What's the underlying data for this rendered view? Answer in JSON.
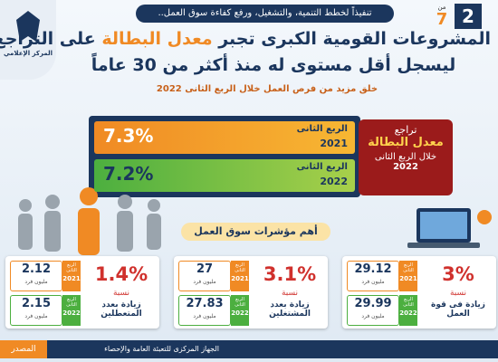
{
  "header": {
    "page": "2",
    "of": "من",
    "total": "7",
    "tagline": "تنفيذاً لخطط التنمية، والتشغيل، ورفع كفاءة سوق العمل..",
    "logo": "المركز الإعلامي",
    "title_parts": [
      "المشروعات القومية الكبرى تجبر",
      "معدل البطالة",
      "على التراجع"
    ],
    "title_line2": "ليسجل أقل مستوى له منذ أكثر من 30 عاماً",
    "subtitle": "خلق مزيد من فرص العمل خلال الربع الثانى 2022"
  },
  "unemployment": {
    "bars": [
      {
        "quarter": "الربع الثانى",
        "year": "2021",
        "value": "7.3%"
      },
      {
        "quarter": "الربع الثانى",
        "year": "2022",
        "value": "7.2%"
      }
    ],
    "box": [
      "تراجع",
      "معدل البطالة",
      "خلال الربع الثانى",
      "2022"
    ]
  },
  "indicators": {
    "title": "أهم مؤشرات سوق العمل",
    "cards": [
      {
        "percent": "1.4%",
        "caption": "نسبة",
        "label": "زيادة بعدد المتعطلين",
        "rows": [
          {
            "quarter": "الربع الثانى",
            "year": "2021",
            "value": "2.12",
            "unit": "مليون فرد"
          },
          {
            "quarter": "الربع الثانى",
            "year": "2022",
            "value": "2.15",
            "unit": "مليون فرد"
          }
        ]
      },
      {
        "percent": "3.1%",
        "caption": "نسبة",
        "label": "زيادة بعدد المشتغلين",
        "rows": [
          {
            "quarter": "الربع الثانى",
            "year": "2021",
            "value": "27",
            "unit": "مليون فرد"
          },
          {
            "quarter": "الربع الثانى",
            "year": "2022",
            "value": "27.83",
            "unit": "مليون فرد"
          }
        ]
      },
      {
        "percent": "3%",
        "caption": "نسبة",
        "label": "زيادة فى قوة العمل",
        "rows": [
          {
            "quarter": "الربع الثانى",
            "year": "2021",
            "value": "29.12",
            "unit": "مليون فرد"
          },
          {
            "quarter": "الربع الثانى",
            "year": "2022",
            "value": "29.99",
            "unit": "مليون فرد"
          }
        ]
      }
    ]
  },
  "footer": {
    "source_label": "المصدر",
    "source": "الجهاز المركزى للتعبئة العامة والإحصاء"
  }
}
